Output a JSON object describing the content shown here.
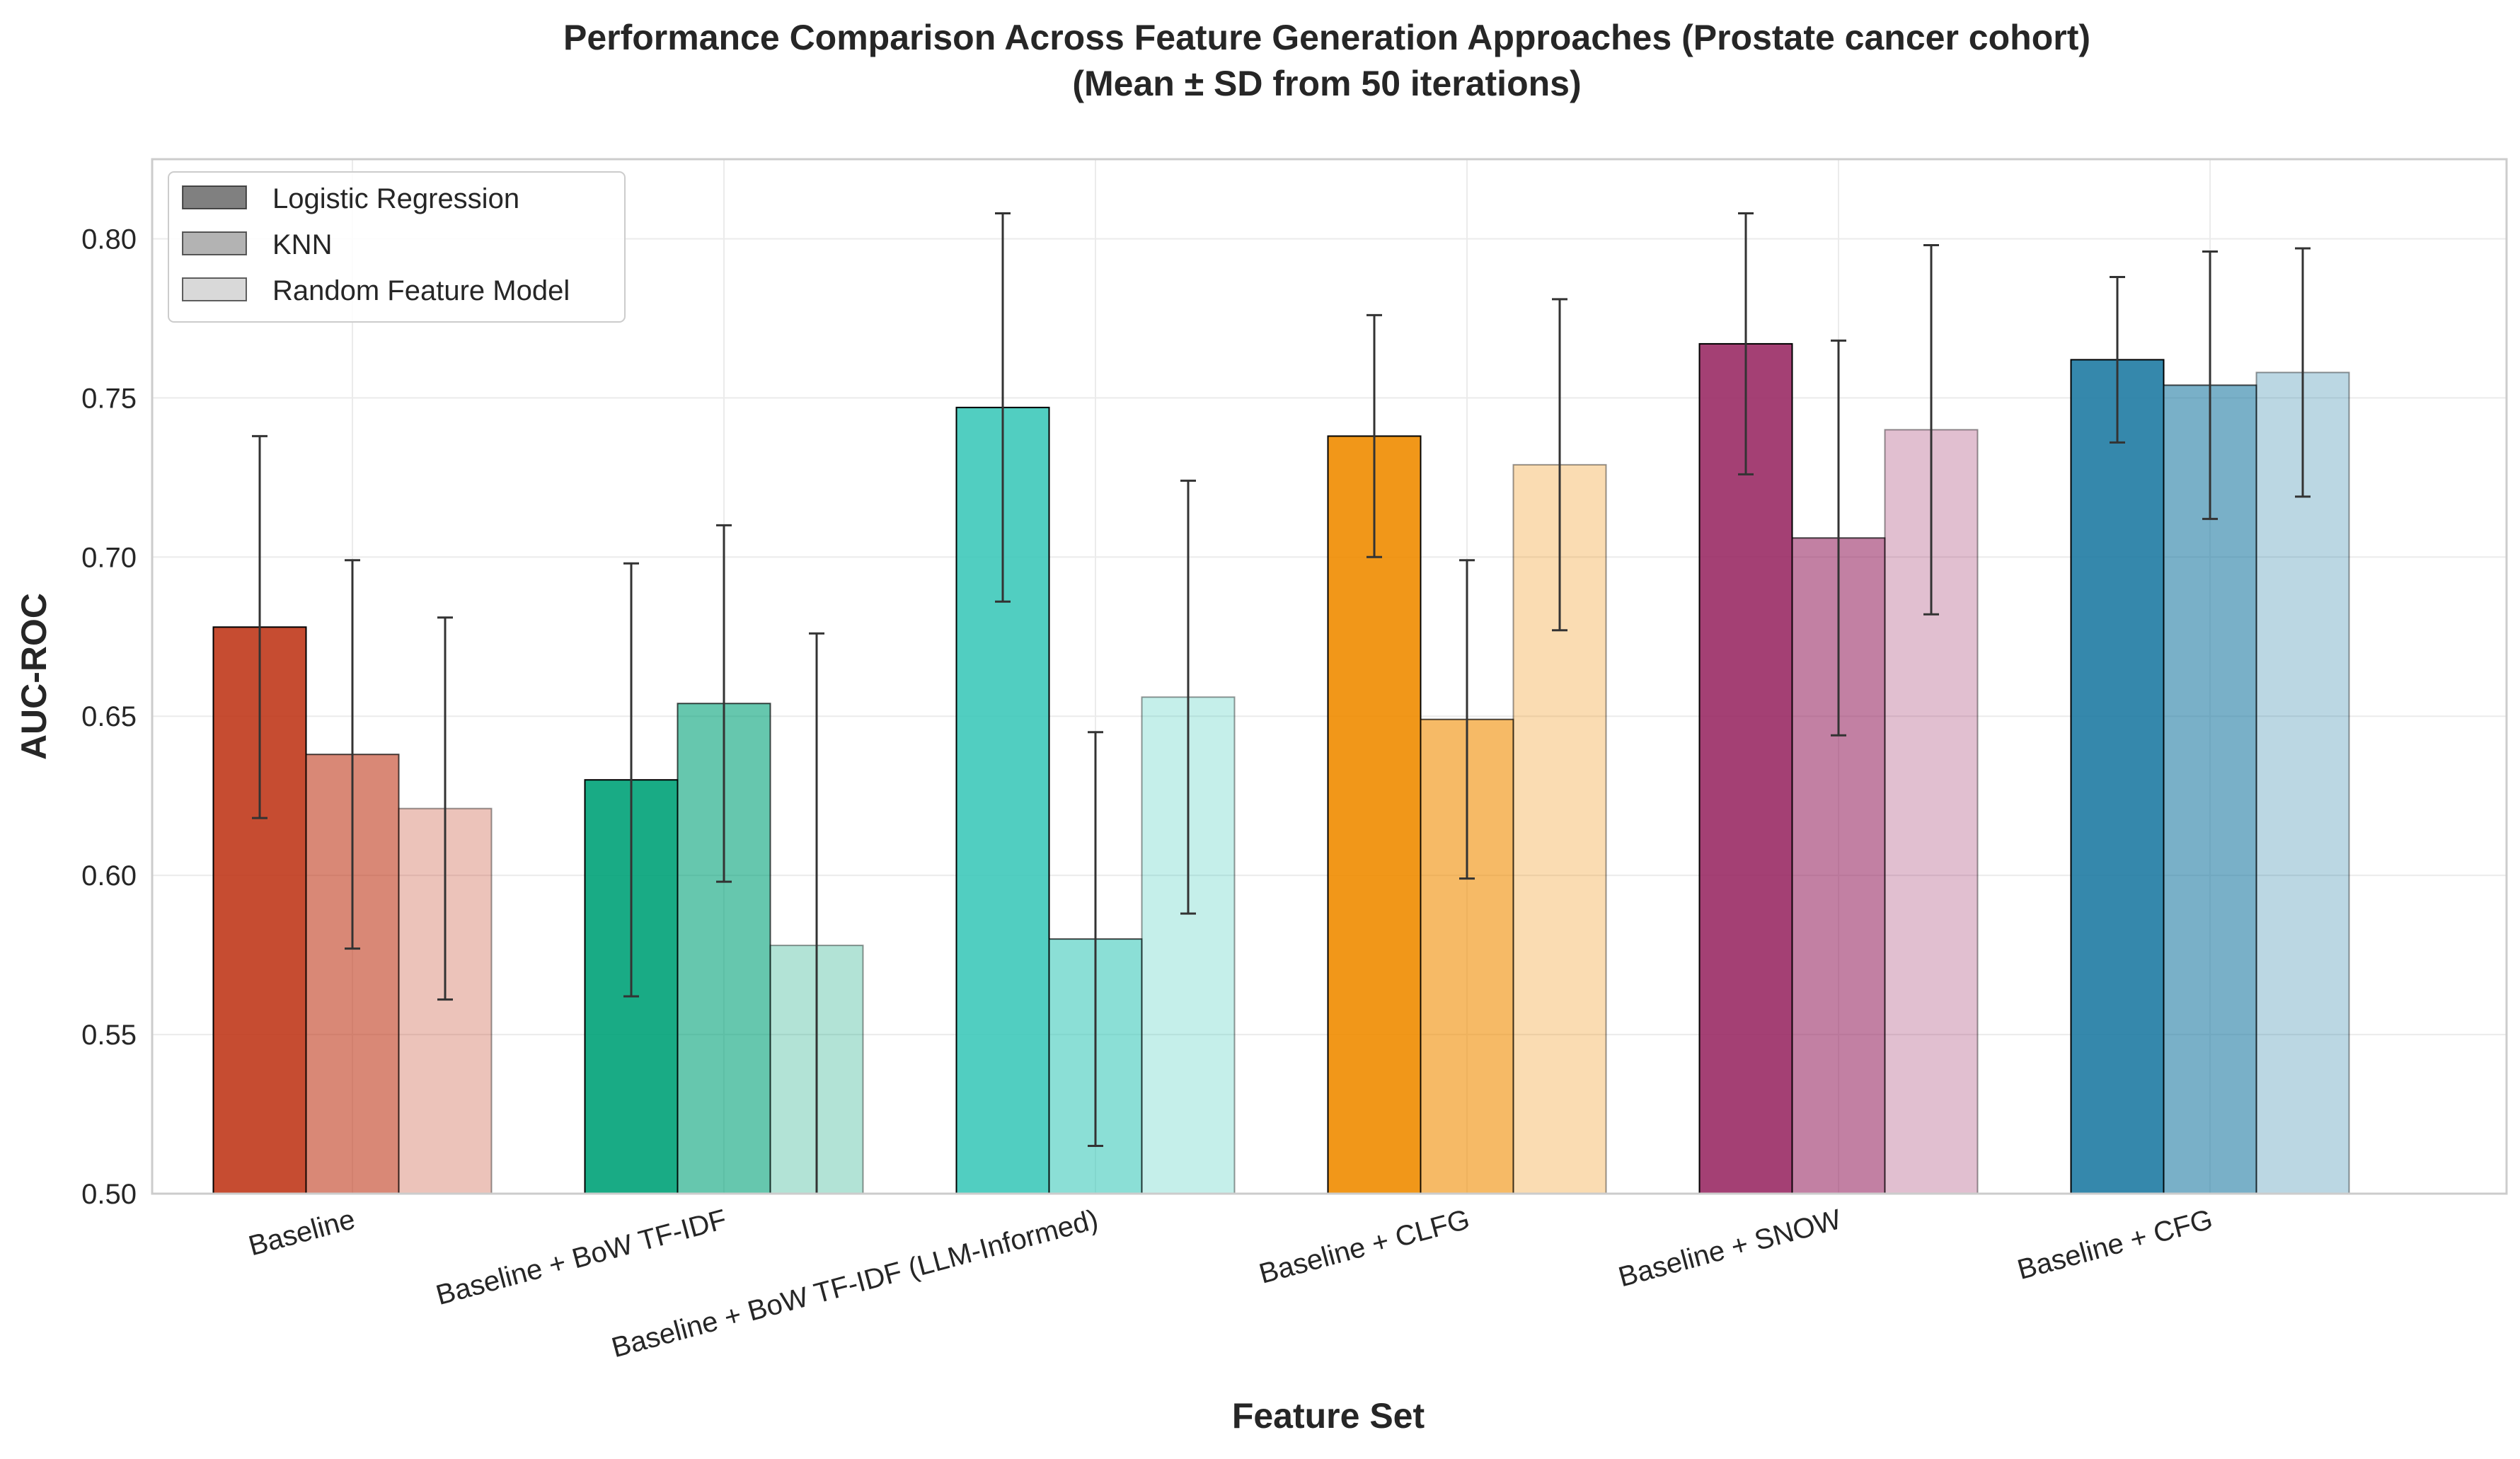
{
  "chart_data": {
    "type": "bar",
    "title": "Performance Comparison Across Feature Generation Approaches (Prostate cancer cohort)",
    "subtitle": "(Mean ± SD from 50 iterations)",
    "xlabel": "Feature Set",
    "ylabel": "AUC-ROC",
    "ylim": [
      0.5,
      0.825
    ],
    "yticks": [
      0.5,
      0.55,
      0.6,
      0.65,
      0.7,
      0.75,
      0.8
    ],
    "ytick_labels": [
      "0.50",
      "0.55",
      "0.60",
      "0.65",
      "0.70",
      "0.75",
      "0.80"
    ],
    "grid": true,
    "legend_position": "top-left",
    "categories": [
      "Baseline",
      "Baseline + BoW TF-IDF",
      "Baseline + BoW TF-IDF (LLM-Informed)",
      "Baseline + CLFG",
      "Baseline + SNOW",
      "Baseline + CFG"
    ],
    "category_colors": [
      "#c0391b",
      "#00a278",
      "#3ec9ba",
      "#f08c00",
      "#9a2b65",
      "#1f7ba3"
    ],
    "series": [
      {
        "name": "Logistic Regression",
        "values": [
          0.678,
          0.63,
          0.747,
          0.738,
          0.767,
          0.762
        ],
        "errors": [
          0.06,
          0.068,
          0.061,
          0.038,
          0.041,
          0.026
        ],
        "opacity": 0.9,
        "legend_color": "#808080"
      },
      {
        "name": "KNN",
        "values": [
          0.638,
          0.654,
          0.58,
          0.649,
          0.706,
          0.754
        ],
        "errors": [
          0.061,
          0.056,
          0.065,
          0.05,
          0.062,
          0.042
        ],
        "opacity": 0.6,
        "legend_color": "#b3b3b3"
      },
      {
        "name": "Random Feature Model",
        "values": [
          0.621,
          0.578,
          0.656,
          0.729,
          0.74,
          0.758
        ],
        "errors": [
          0.06,
          0.098,
          0.068,
          0.052,
          0.058,
          0.039
        ],
        "opacity": 0.3,
        "legend_color": "#d9d9d9"
      }
    ]
  }
}
